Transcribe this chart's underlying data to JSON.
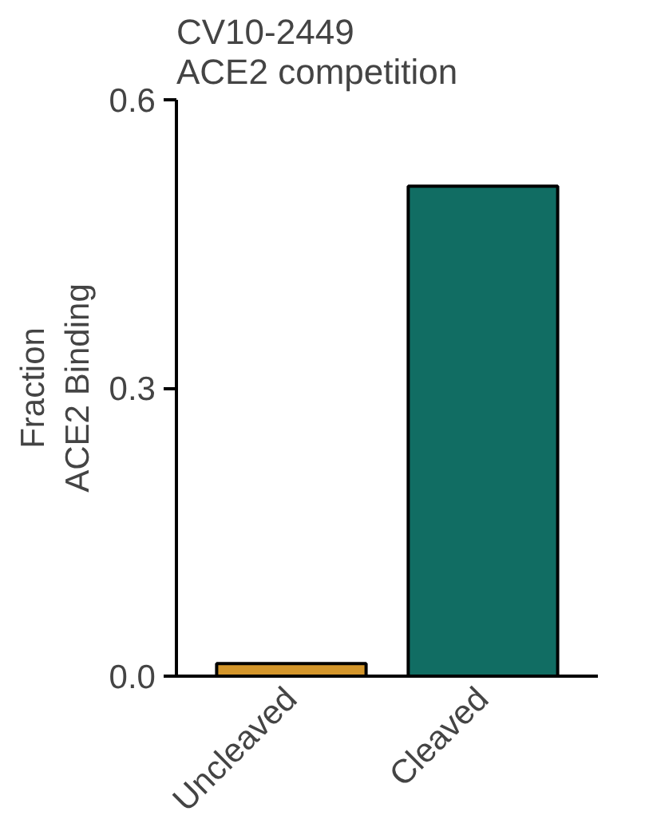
{
  "chart_data": {
    "type": "bar",
    "title": "CV10-2449\nACE2 competition",
    "ylabel": "Fraction\nACE2 Binding",
    "categories": [
      "Uncleaved",
      "Cleaved"
    ],
    "values": [
      0.013,
      0.51
    ],
    "colors": [
      "#d4962b",
      "#116d63"
    ],
    "ylim": [
      0,
      0.6
    ],
    "yticks": [
      {
        "value": 0,
        "label": "0.0"
      },
      {
        "value": 0.3,
        "label": "0.3"
      },
      {
        "value": 0.6,
        "label": "0.6"
      }
    ],
    "grid": false
  }
}
